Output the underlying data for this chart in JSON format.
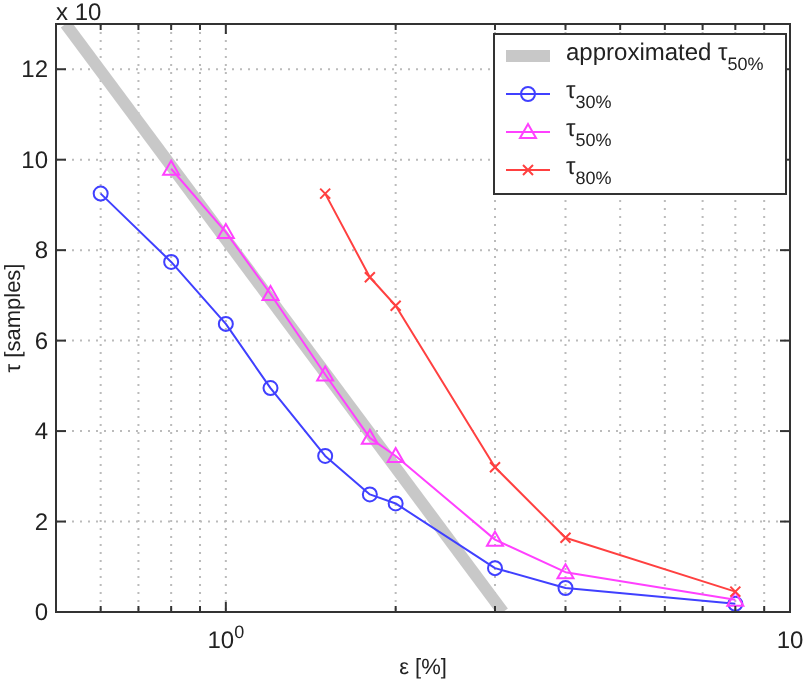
{
  "chart_data": {
    "type": "line",
    "xlabel": "ε [%]",
    "ylabel": "τ [samples]",
    "annotations": [
      "x 10"
    ],
    "log": "x",
    "grid": true,
    "legend": "top right",
    "xlim": [
      0.5,
      10
    ],
    "ylim": [
      0,
      13
    ],
    "xticks": [
      {
        "value": 0.6,
        "label": null
      },
      {
        "value": 0.7,
        "label": null
      },
      {
        "value": 0.8,
        "label": null
      },
      {
        "value": 0.9,
        "label": null
      },
      {
        "value": 1,
        "label": "10$^{0}$"
      },
      {
        "value": 2,
        "label": null
      },
      {
        "value": 3,
        "label": null
      },
      {
        "value": 4,
        "label": null
      },
      {
        "value": 5,
        "label": null
      },
      {
        "value": 6,
        "label": null
      },
      {
        "value": 7,
        "label": null
      },
      {
        "value": 8,
        "label": null
      },
      {
        "value": 9,
        "label": null
      },
      {
        "value": 10,
        "label": "10"
      }
    ],
    "yticks": [
      0,
      2,
      4,
      6,
      8,
      10,
      12
    ],
    "series": [
      {
        "name": "approximated τ$_{50%}$",
        "color": "#c8c8c8",
        "marker": "none",
        "x": [
          0.52,
          3.1
        ],
        "values": [
          13,
          0
        ]
      },
      {
        "name": "τ$_{30%}$",
        "color": "#4040ff",
        "marker": "circle",
        "x": [
          0.6,
          0.8,
          1.0,
          1.2,
          1.5,
          1.8,
          2.0,
          3.0,
          4.0,
          8.0
        ],
        "values": [
          9.25,
          7.74,
          6.37,
          4.95,
          3.45,
          2.6,
          2.4,
          0.97,
          0.53,
          0.18
        ]
      },
      {
        "name": "τ$_{50%}$",
        "color": "#ff40ff",
        "marker": "triangle",
        "x": [
          0.8,
          1.0,
          1.2,
          1.5,
          1.8,
          2.0,
          3.0,
          4.0,
          8.0
        ],
        "values": [
          9.8,
          8.4,
          7.03,
          5.25,
          3.85,
          3.45,
          1.6,
          0.88,
          0.27
        ]
      },
      {
        "name": "τ$_{80%}$",
        "color": "#ff4040",
        "marker": "cross",
        "x": [
          1.5,
          1.8,
          2.0,
          3.0,
          4.0,
          8.0
        ],
        "values": [
          9.25,
          7.4,
          6.77,
          3.2,
          1.64,
          0.45
        ]
      }
    ]
  }
}
